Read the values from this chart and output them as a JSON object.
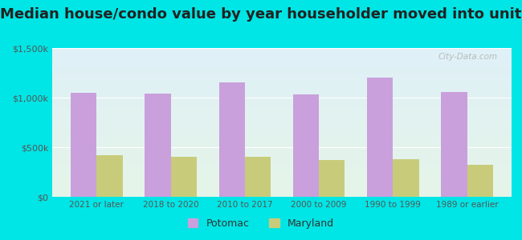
{
  "title": "Median house/condo value by year householder moved into unit",
  "categories": [
    "2021 or later",
    "2018 to 2020",
    "2010 to 2017",
    "2000 to 2009",
    "1990 to 1999",
    "1989 or earlier"
  ],
  "potomac_values": [
    1050000,
    1040000,
    1150000,
    1030000,
    1200000,
    1060000
  ],
  "maryland_values": [
    420000,
    400000,
    400000,
    370000,
    380000,
    320000
  ],
  "potomac_color": "#c9a0dc",
  "maryland_color": "#c8cc7a",
  "background_color": "#00e5e5",
  "ylim": [
    0,
    1500000
  ],
  "yticks": [
    0,
    500000,
    1000000,
    1500000
  ],
  "ytick_labels": [
    "$0",
    "$500k",
    "$1,000k",
    "$1,500k"
  ],
  "watermark": "City-Data.com",
  "legend_potomac": "Potomac",
  "legend_maryland": "Maryland",
  "title_fontsize": 13,
  "bar_width": 0.35
}
